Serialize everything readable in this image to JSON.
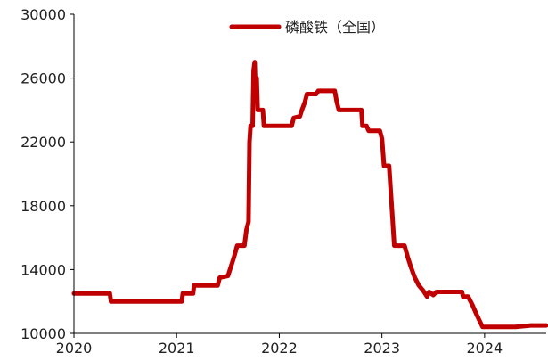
{
  "chart_data": {
    "type": "line",
    "title": "",
    "xlabel": "",
    "ylabel": "",
    "legend": {
      "placement": "top-center",
      "entries": [
        "磷酸铁（全国）"
      ]
    },
    "grid": false,
    "xlim": [
      2020.0,
      2024.6
    ],
    "ylim": [
      10000,
      30000
    ],
    "x_ticks": [
      2020,
      2021,
      2022,
      2023,
      2024
    ],
    "x_tick_labels": [
      "2020",
      "2021",
      "2022",
      "2023",
      "2024"
    ],
    "y_ticks": [
      10000,
      14000,
      18000,
      22000,
      26000,
      30000
    ],
    "y_tick_labels": [
      "10000",
      "14000",
      "18000",
      "22000",
      "26000",
      "30000"
    ],
    "colors": {
      "series": "#C00000",
      "axis": "#000000"
    },
    "series": [
      {
        "name": "磷酸铁（全国）",
        "points": [
          [
            2020.0,
            12500
          ],
          [
            2020.35,
            12500
          ],
          [
            2020.36,
            12000
          ],
          [
            2021.05,
            12000
          ],
          [
            2021.06,
            12500
          ],
          [
            2021.16,
            12500
          ],
          [
            2021.17,
            13000
          ],
          [
            2021.4,
            13000
          ],
          [
            2021.42,
            13500
          ],
          [
            2021.5,
            13600
          ],
          [
            2021.53,
            14200
          ],
          [
            2021.56,
            14800
          ],
          [
            2021.59,
            15500
          ],
          [
            2021.66,
            15500
          ],
          [
            2021.68,
            16500
          ],
          [
            2021.7,
            17000
          ],
          [
            2021.71,
            22000
          ],
          [
            2021.72,
            23000
          ],
          [
            2021.74,
            23000
          ],
          [
            2021.75,
            26500
          ],
          [
            2021.76,
            27000
          ],
          [
            2021.77,
            25000
          ],
          [
            2021.78,
            26000
          ],
          [
            2021.79,
            24000
          ],
          [
            2021.84,
            24000
          ],
          [
            2021.85,
            23000
          ],
          [
            2022.12,
            23000
          ],
          [
            2022.14,
            23500
          ],
          [
            2022.2,
            23600
          ],
          [
            2022.22,
            24000
          ],
          [
            2022.25,
            24500
          ],
          [
            2022.27,
            25000
          ],
          [
            2022.36,
            25000
          ],
          [
            2022.38,
            25200
          ],
          [
            2022.54,
            25200
          ],
          [
            2022.56,
            24500
          ],
          [
            2022.58,
            24000
          ],
          [
            2022.8,
            24000
          ],
          [
            2022.81,
            23000
          ],
          [
            2022.85,
            23000
          ],
          [
            2022.87,
            22700
          ],
          [
            2022.98,
            22700
          ],
          [
            2023.0,
            22200
          ],
          [
            2023.02,
            20500
          ],
          [
            2023.07,
            20500
          ],
          [
            2023.09,
            18500
          ],
          [
            2023.1,
            17500
          ],
          [
            2023.12,
            15500
          ],
          [
            2023.22,
            15500
          ],
          [
            2023.25,
            14800
          ],
          [
            2023.28,
            14200
          ],
          [
            2023.32,
            13500
          ],
          [
            2023.36,
            13000
          ],
          [
            2023.4,
            12700
          ],
          [
            2023.44,
            12300
          ],
          [
            2023.46,
            12600
          ],
          [
            2023.5,
            12400
          ],
          [
            2023.53,
            12600
          ],
          [
            2023.78,
            12600
          ],
          [
            2023.79,
            12300
          ],
          [
            2023.84,
            12300
          ],
          [
            2023.88,
            11800
          ],
          [
            2023.92,
            11200
          ],
          [
            2023.95,
            10800
          ],
          [
            2023.98,
            10400
          ],
          [
            2024.2,
            10400
          ],
          [
            2024.3,
            10400
          ],
          [
            2024.45,
            10500
          ],
          [
            2024.6,
            10500
          ]
        ]
      }
    ]
  }
}
